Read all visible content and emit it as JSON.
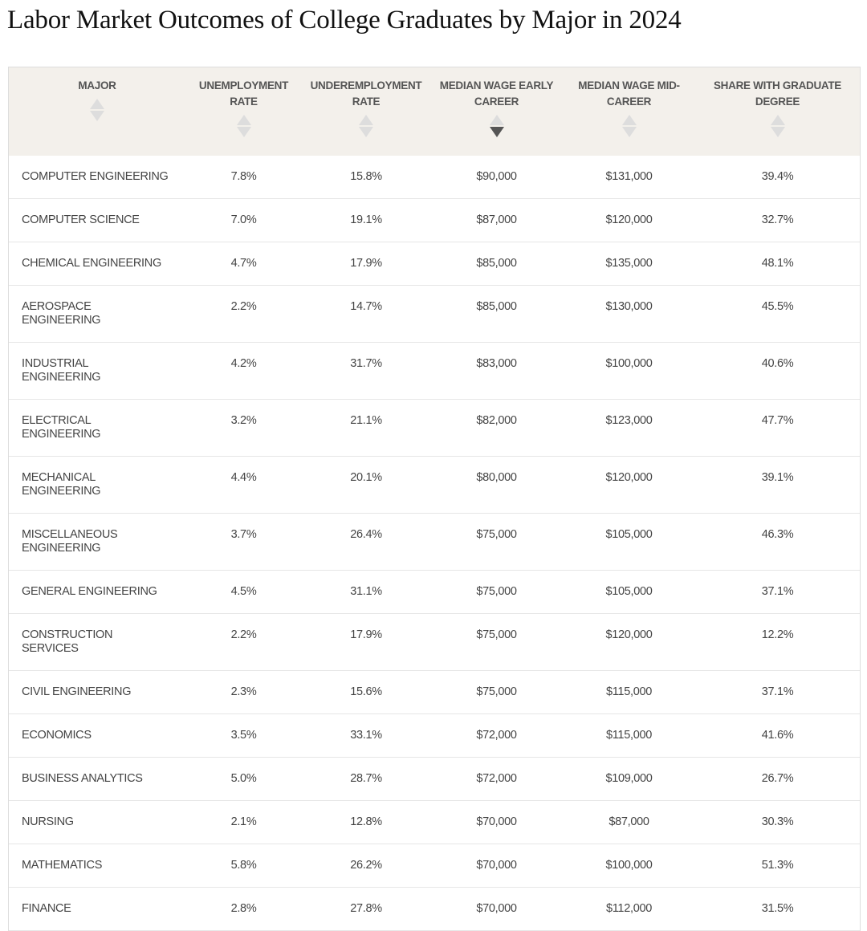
{
  "header": {
    "title": "Labor Market Outcomes of College Graduates by Major in 2024"
  },
  "table": {
    "columns": [
      "MAJOR",
      "UNEMPLOYMENT RATE",
      "UNDEREMPLOYMENT RATE",
      "MEDIAN WAGE EARLY CAREER",
      "MEDIAN WAGE MID-CAREER",
      "SHARE WITH GRADUATE DEGREE"
    ],
    "rows": [
      [
        "COMPUTER ENGINEERING",
        "7.8%",
        "15.8%",
        "$90,000",
        "$131,000",
        "39.4%"
      ],
      [
        "COMPUTER SCIENCE",
        "7.0%",
        "19.1%",
        "$87,000",
        "$120,000",
        "32.7%"
      ],
      [
        "CHEMICAL ENGINEERING",
        "4.7%",
        "17.9%",
        "$85,000",
        "$135,000",
        "48.1%"
      ],
      [
        "AEROSPACE ENGINEERING",
        "2.2%",
        "14.7%",
        "$85,000",
        "$130,000",
        "45.5%"
      ],
      [
        "INDUSTRIAL ENGINEERING",
        "4.2%",
        "31.7%",
        "$83,000",
        "$100,000",
        "40.6%"
      ],
      [
        "ELECTRICAL ENGINEERING",
        "3.2%",
        "21.1%",
        "$82,000",
        "$123,000",
        "47.7%"
      ],
      [
        "MECHANICAL ENGINEERING",
        "4.4%",
        "20.1%",
        "$80,000",
        "$120,000",
        "39.1%"
      ],
      [
        "MISCELLANEOUS ENGINEERING",
        "3.7%",
        "26.4%",
        "$75,000",
        "$105,000",
        "46.3%"
      ],
      [
        "GENERAL ENGINEERING",
        "4.5%",
        "31.1%",
        "$75,000",
        "$105,000",
        "37.1%"
      ],
      [
        "CONSTRUCTION SERVICES",
        "2.2%",
        "17.9%",
        "$75,000",
        "$120,000",
        "12.2%"
      ],
      [
        "CIVIL ENGINEERING",
        "2.3%",
        "15.6%",
        "$75,000",
        "$115,000",
        "37.1%"
      ],
      [
        "ECONOMICS",
        "3.5%",
        "33.1%",
        "$72,000",
        "$115,000",
        "41.6%"
      ],
      [
        "BUSINESS ANALYTICS",
        "5.0%",
        "28.7%",
        "$72,000",
        "$109,000",
        "26.7%"
      ],
      [
        "NURSING",
        "2.1%",
        "12.8%",
        "$70,000",
        "$87,000",
        "30.3%"
      ],
      [
        "MATHEMATICS",
        "5.8%",
        "26.2%",
        "$70,000",
        "$100,000",
        "51.3%"
      ],
      [
        "FINANCE",
        "2.8%",
        "27.8%",
        "$70,000",
        "$112,000",
        "31.5%"
      ]
    ]
  }
}
